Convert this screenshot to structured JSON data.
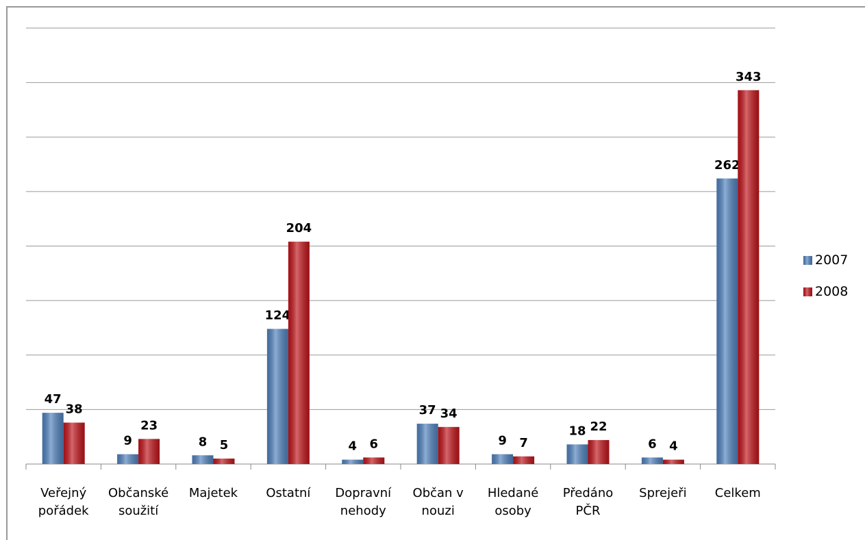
{
  "chart_data": {
    "type": "bar",
    "categories": [
      "Veřejný pořádek",
      "Občanské soužití",
      "Majetek",
      "Ostatní",
      "Dopravní nehody",
      "Občan v nouzi",
      "Hledané osoby",
      "Předáno PČR",
      "Sprejeři",
      "Celkem"
    ],
    "series": [
      {
        "name": "2007",
        "color": "#4f81bd",
        "values": [
          47,
          9,
          8,
          124,
          4,
          37,
          9,
          18,
          6,
          262
        ]
      },
      {
        "name": "2008",
        "color": "#c0141a",
        "values": [
          38,
          23,
          5,
          204,
          6,
          34,
          7,
          22,
          4,
          343
        ]
      }
    ],
    "ylim": [
      0,
      400
    ],
    "yticks": [
      0,
      50,
      100,
      150,
      200,
      250,
      300,
      350,
      400
    ],
    "grid": true
  }
}
